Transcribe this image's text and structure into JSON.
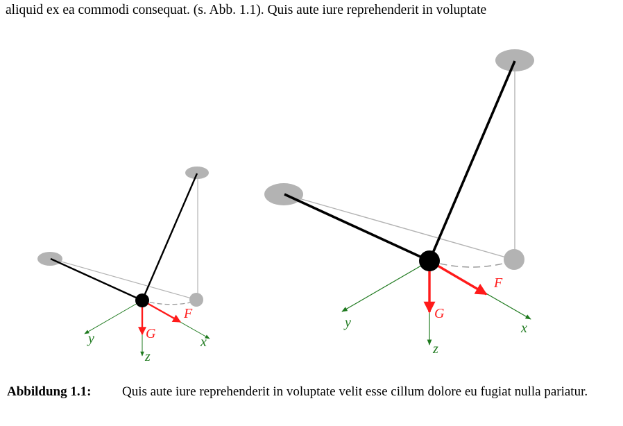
{
  "body_text": "aliquid ex ea commodi consequat. (s. Abb. 1.1). Quis aute iure reprehenderit in voluptate",
  "caption": {
    "label": "Abbildung 1.1:",
    "text": "Quis aute iure reprehenderit in voluptate velit esse cillum dolore eu fugiat nulla pariatur."
  },
  "figure": {
    "panels": [
      {
        "labels": {
          "x": "x",
          "y": "y",
          "z": "z",
          "F": "F",
          "G": "G"
        }
      },
      {
        "labels": {
          "x": "x",
          "y": "y",
          "z": "z",
          "F": "F",
          "G": "G"
        }
      }
    ],
    "colors": {
      "axis": "#1f7a1f",
      "force": "#ff1a1a",
      "support": "#b3b3b3",
      "rod": "#000000",
      "guide": "#999999"
    }
  }
}
